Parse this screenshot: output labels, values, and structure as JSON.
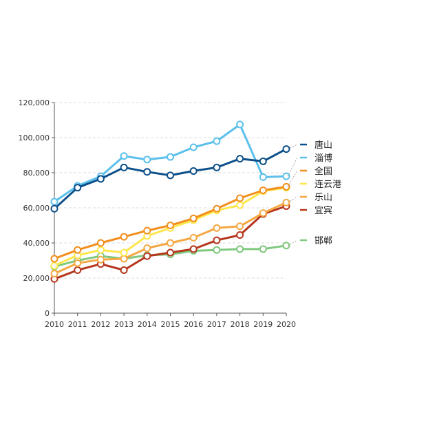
{
  "chart_data": {
    "type": "line",
    "x": [
      2010,
      2011,
      2012,
      2013,
      2014,
      2015,
      2016,
      2017,
      2018,
      2019,
      2020
    ],
    "xticks": [
      "2010",
      "2011",
      "2012",
      "2013",
      "2014",
      "2015",
      "2016",
      "2017",
      "2018",
      "2019",
      "2020"
    ],
    "yticks": [
      "0",
      "20,000",
      "40,000",
      "60,000",
      "80,000",
      "100,000",
      "120,000"
    ],
    "ylim": [
      0,
      120000
    ],
    "grid": true,
    "legend_position": "right",
    "series": [
      {
        "name": "唐山",
        "color": "#0b4f8a",
        "values": [
          59500,
          71500,
          76500,
          83000,
          80500,
          78500,
          81000,
          83000,
          88000,
          86500,
          93500
        ]
      },
      {
        "name": "淄博",
        "color": "#5bc0eb",
        "values": [
          63500,
          72500,
          78000,
          89500,
          87500,
          89000,
          94500,
          98000,
          107500,
          77500,
          78000
        ]
      },
      {
        "name": "全国",
        "color": "#f28e1c",
        "values": [
          31000,
          36000,
          40000,
          43500,
          47000,
          50000,
          54000,
          59500,
          65500,
          70000,
          72000
        ]
      },
      {
        "name": "连云港",
        "color": "#fde74c",
        "values": [
          27000,
          33000,
          36000,
          34500,
          44000,
          48500,
          53000,
          58500,
          61500,
          69500,
          71500
        ]
      },
      {
        "name": "乐山",
        "color": "#f5a742",
        "values": [
          22500,
          28500,
          30500,
          31000,
          37000,
          40000,
          43000,
          48500,
          49500,
          57000,
          63000
        ]
      },
      {
        "name": "宜宾",
        "color": "#b5361d",
        "values": [
          19500,
          24500,
          28000,
          24500,
          32500,
          34500,
          36500,
          41500,
          44500,
          56500,
          61000
        ]
      },
      {
        "name": "邯郸",
        "color": "#7fc97f",
        "values": [
          26500,
          30000,
          32500,
          31000,
          33000,
          33500,
          35500,
          36000,
          36500,
          36500,
          38500
        ]
      }
    ]
  }
}
